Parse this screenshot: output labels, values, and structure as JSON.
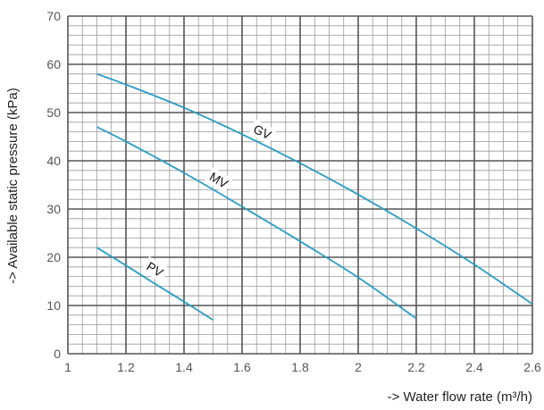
{
  "chart_data": {
    "type": "line",
    "xlabel": "-> Water flow rate (m³/h)",
    "ylabel": "-> Available static pressure (kPa)",
    "xlim": [
      1,
      2.6
    ],
    "ylim": [
      0,
      70
    ],
    "x_ticks": [
      1,
      1.2,
      1.4,
      1.6,
      1.8,
      2,
      2.2,
      2.4,
      2.6
    ],
    "x_tick_labels": [
      "1",
      "1.2",
      "1.4",
      "1.6",
      "1.8",
      "2",
      "2.2",
      "2.4",
      "2.6"
    ],
    "y_ticks": [
      0,
      10,
      20,
      30,
      40,
      50,
      60,
      70
    ],
    "y_tick_labels": [
      "0",
      "10",
      "20",
      "30",
      "40",
      "50",
      "60",
      "70"
    ],
    "grid": true,
    "minor_x_step": 0.05,
    "minor_y_step": 2,
    "series": [
      {
        "name": "GV",
        "x": [
          1.1,
          1.2,
          1.4,
          1.6,
          1.8,
          2.0,
          2.2,
          2.4,
          2.6
        ],
        "y": [
          58,
          55.8,
          51,
          45.5,
          39.5,
          33,
          26,
          18.5,
          10.3
        ],
        "label_at": [
          1.67,
          46
        ]
      },
      {
        "name": "MV",
        "x": [
          1.1,
          1.2,
          1.4,
          1.6,
          1.8,
          2.0,
          2.2
        ],
        "y": [
          47,
          44,
          37.5,
          30.5,
          23.3,
          15.8,
          7.3
        ],
        "label_at": [
          1.52,
          36
        ]
      },
      {
        "name": "PV",
        "x": [
          1.1,
          1.2,
          1.3,
          1.4,
          1.5
        ],
        "y": [
          22,
          18.3,
          14.5,
          10.8,
          7
        ],
        "label_at": [
          1.3,
          17.5
        ]
      }
    ],
    "colors": {
      "series": "#2b9cc6",
      "grid_minor": "#9a9a9a",
      "grid_major": "#555555"
    }
  }
}
